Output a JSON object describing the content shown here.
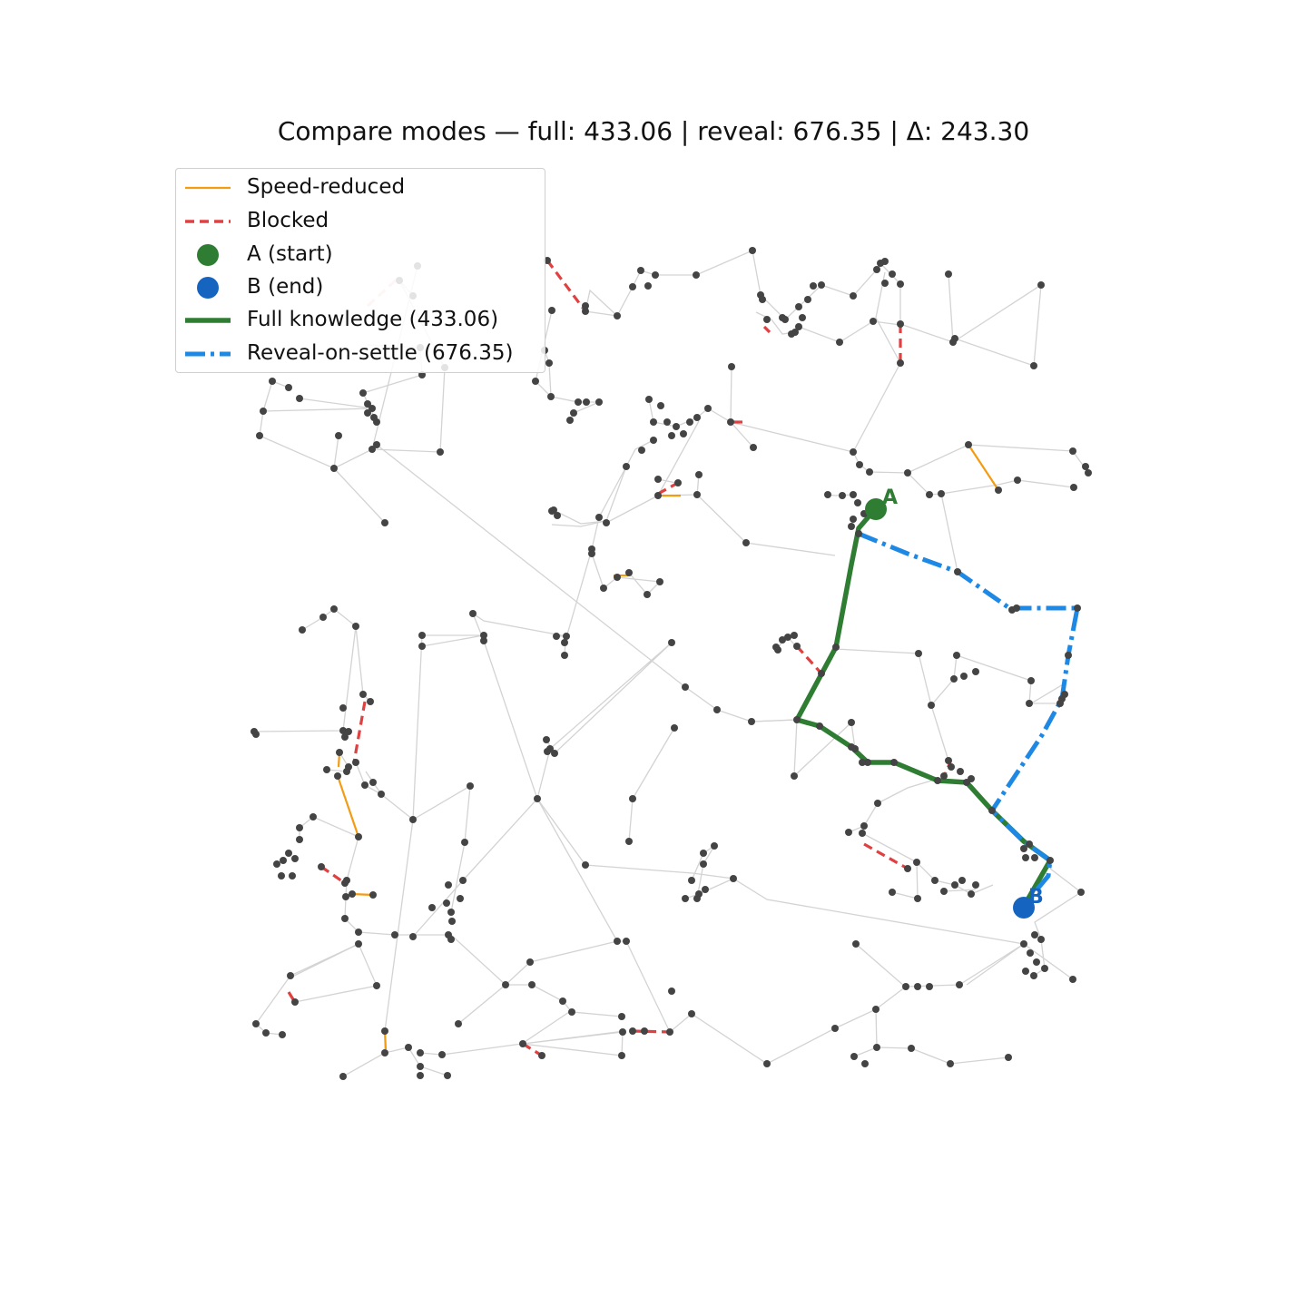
{
  "title": "Compare modes — full: 433.06 | reveal: 676.35 | Δ: 243.30",
  "colors": {
    "edge": "#d3d3d3",
    "node": "#444444",
    "speed_reduced": "#f39c12",
    "blocked": "#e04040",
    "start": "#2e7d32",
    "end": "#1565c0",
    "full_path": "#2e7d32",
    "reveal_path": "#1e88e5"
  },
  "legend": {
    "placement": "upper-left",
    "items": [
      {
        "label": "Speed-reduced",
        "style": "speed"
      },
      {
        "label": "Blocked",
        "style": "blocked"
      },
      {
        "label": "A (start)",
        "style": "start"
      },
      {
        "label": "B (end)",
        "style": "end"
      },
      {
        "label": "Full knowledge (433.06)",
        "style": "full"
      },
      {
        "label": "Reveal-on-settle (676.35)",
        "style": "reveal"
      }
    ]
  },
  "markers": {
    "start_label": "A",
    "end_label": "B"
  }
}
